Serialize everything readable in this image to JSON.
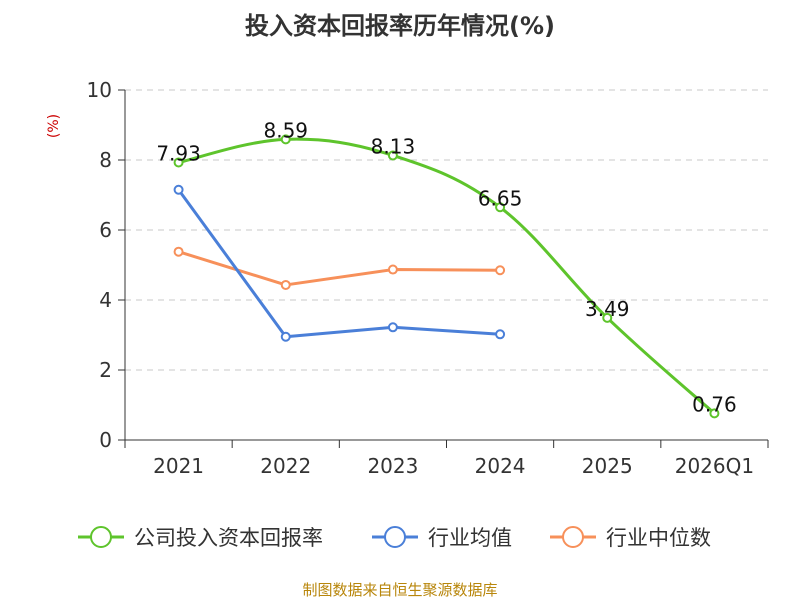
{
  "chart_data": {
    "type": "line",
    "title": "投入资本回报率历年情况(%)",
    "ylabel": "(%)",
    "xlabel": "",
    "ylim": [
      0,
      10
    ],
    "yticks": [
      0,
      2,
      4,
      6,
      8,
      10
    ],
    "categories": [
      "2021",
      "2022",
      "2023",
      "2024",
      "2025",
      "2026Q1"
    ],
    "grid": true,
    "legend_position": "bottom",
    "series": [
      {
        "name": "公司投入资本回报率",
        "color": "#5ec42c",
        "values": [
          7.93,
          8.59,
          8.13,
          6.65,
          3.49,
          0.76
        ],
        "labels": [
          "7.93",
          "8.59",
          "8.13",
          "6.65",
          "3.49",
          "0.76"
        ],
        "smooth": true
      },
      {
        "name": "行业均值",
        "color": "#4a7fd8",
        "values": [
          7.15,
          2.95,
          3.22,
          3.02,
          null,
          null
        ]
      },
      {
        "name": "行业中位数",
        "color": "#f7905a",
        "values": [
          5.38,
          4.43,
          4.87,
          4.85,
          null,
          null
        ]
      }
    ]
  },
  "footer": {
    "source": "制图数据来自恒生聚源数据库"
  }
}
